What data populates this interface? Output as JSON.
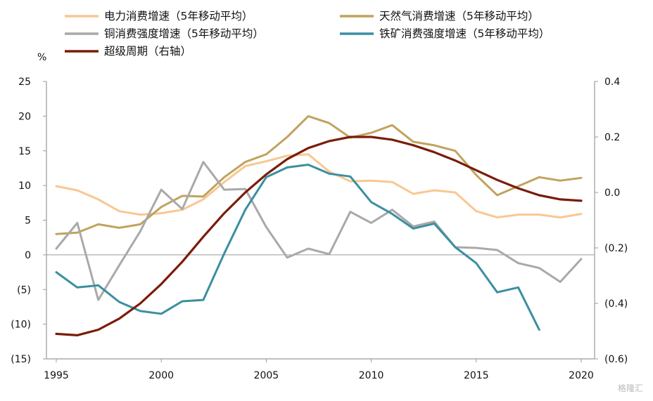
{
  "chart_data": {
    "type": "line",
    "title": "",
    "x": [
      1995,
      1996,
      1997,
      1998,
      1999,
      2000,
      2001,
      2002,
      2003,
      2004,
      2005,
      2006,
      2007,
      2008,
      2009,
      2010,
      2011,
      2012,
      2013,
      2014,
      2015,
      2016,
      2017,
      2018,
      2019,
      2020
    ],
    "x_ticks": [
      "1995",
      "2000",
      "2005",
      "2010",
      "2015",
      "2020"
    ],
    "y_left": {
      "unit_label": "%",
      "range": [
        -15,
        25
      ],
      "ticks": [
        {
          "value": 25,
          "label": "25",
          "color": "#111111"
        },
        {
          "value": 20,
          "label": "20",
          "color": "#111111"
        },
        {
          "value": 15,
          "label": "15",
          "color": "#111111"
        },
        {
          "value": 10,
          "label": "10",
          "color": "#111111"
        },
        {
          "value": 5,
          "label": "5",
          "color": "#111111"
        },
        {
          "value": 0,
          "label": "0",
          "color": "#111111"
        },
        {
          "value": -5,
          "label": "(5)",
          "color": "#e00000"
        },
        {
          "value": -10,
          "label": "(10)",
          "color": "#e00000"
        },
        {
          "value": -15,
          "label": "(15)",
          "color": "#e00000"
        }
      ]
    },
    "y_right": {
      "range": [
        -0.6,
        0.4
      ],
      "ticks": [
        {
          "value": 0.4,
          "label": "0.4",
          "color": "#111111"
        },
        {
          "value": 0.2,
          "label": "0.2",
          "color": "#111111"
        },
        {
          "value": 0.0,
          "label": "0.0",
          "color": "#111111"
        },
        {
          "value": -0.2,
          "label": "(0.2)",
          "color": "#e00000"
        },
        {
          "value": -0.4,
          "label": "(0.4)",
          "color": "#e00000"
        },
        {
          "value": -0.6,
          "label": "(0.6)",
          "color": "#e00000"
        }
      ]
    },
    "grid": false,
    "legend_position": "top",
    "series": [
      {
        "name": "电力消费增速（5年移动平均）",
        "color": "#f9c792",
        "axis": "left",
        "values": [
          9.9,
          9.3,
          8.0,
          6.3,
          5.8,
          6.0,
          6.5,
          8.0,
          10.5,
          12.8,
          13.5,
          14.3,
          14.5,
          12.0,
          10.6,
          10.7,
          10.5,
          8.8,
          9.3,
          9.0,
          6.3,
          5.4,
          5.8,
          5.8,
          5.4,
          5.9
        ]
      },
      {
        "name": "天然气消费增速（5年移动平均）",
        "color": "#c0a45c",
        "axis": "left",
        "values": [
          3.0,
          3.2,
          4.4,
          3.9,
          4.4,
          6.9,
          8.5,
          8.4,
          11.2,
          13.4,
          14.5,
          17.0,
          20.0,
          19.0,
          16.9,
          17.6,
          18.7,
          16.3,
          15.8,
          15.0,
          11.5,
          8.6,
          9.9,
          11.2,
          10.7,
          11.1
        ]
      },
      {
        "name": "铜消费强度增速（5年移动平均）",
        "color": "#a9a9a9",
        "axis": "left",
        "values": [
          0.9,
          4.6,
          -6.5,
          -1.5,
          3.4,
          9.4,
          6.6,
          13.4,
          9.4,
          9.5,
          4.0,
          -0.4,
          0.9,
          0.1,
          6.2,
          4.6,
          6.5,
          4.1,
          4.8,
          1.1,
          1.0,
          0.7,
          -1.2,
          -1.9,
          -3.9,
          -0.6
        ]
      },
      {
        "name": "铁矿消费强度增速（5年移动平均）",
        "color": "#3b8fa0",
        "axis": "left",
        "values": [
          -2.5,
          -4.7,
          -4.4,
          -6.8,
          -8.1,
          -8.5,
          -6.7,
          -6.5,
          0.2,
          6.5,
          11.2,
          12.6,
          13.0,
          11.7,
          11.3,
          7.6,
          5.9,
          3.8,
          4.5,
          1.1,
          -1.2,
          -5.4,
          -4.7,
          -10.8,
          null,
          null
        ]
      },
      {
        "name": "超级周期（右轴）",
        "color": "#7a1c0a",
        "axis": "right",
        "values": [
          -0.51,
          -0.515,
          -0.495,
          -0.455,
          -0.4,
          -0.33,
          -0.25,
          -0.16,
          -0.075,
          0.0,
          0.065,
          0.12,
          0.16,
          0.185,
          0.2,
          0.2,
          0.19,
          0.17,
          0.145,
          0.115,
          0.08,
          0.045,
          0.015,
          -0.01,
          -0.025,
          -0.03
        ]
      }
    ]
  },
  "watermark": "格隆汇"
}
